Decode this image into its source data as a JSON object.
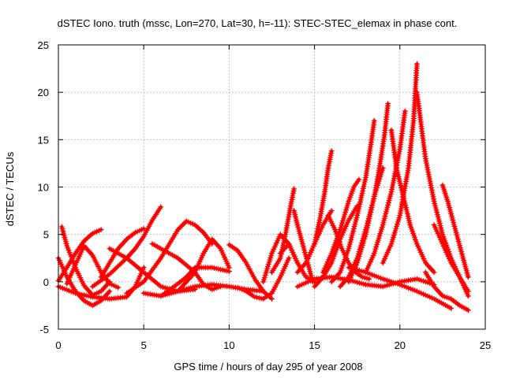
{
  "chart_data": {
    "type": "scatter",
    "title": "dSTEC Iono. truth (mssc, Lon=270, Lat=30, h=-11): STEC-STEC_elemax in phase cont.",
    "xlabel": "GPS time / hours of day 295 of year 2008",
    "ylabel": "dSTEC  / TECUs",
    "xlim": [
      0,
      25
    ],
    "ylim": [
      -5,
      25
    ],
    "xticks": [
      0,
      5,
      10,
      15,
      20,
      25
    ],
    "yticks": [
      -5,
      0,
      5,
      10,
      15,
      20,
      25
    ],
    "grid": true,
    "marker": "+",
    "series_color": "#ff0000",
    "series": [
      {
        "x": [
          0.2,
          0.5,
          1.0,
          1.5,
          2.0,
          2.5,
          3.0
        ],
        "y": [
          5.8,
          3.8,
          1.5,
          -0.4,
          -1.4,
          -1.0,
          0.0
        ]
      },
      {
        "x": [
          0.0,
          0.5,
          1.0,
          1.5,
          2.0,
          2.5
        ],
        "y": [
          0.1,
          1.5,
          3.0,
          4.3,
          5.1,
          5.5
        ]
      },
      {
        "x": [
          0.0,
          0.5,
          1.0,
          1.5,
          2.0,
          2.5,
          3.0
        ],
        "y": [
          2.5,
          0.5,
          -1.0,
          -2.0,
          -2.5,
          -2.0,
          -1.0
        ]
      },
      {
        "x": [
          0.0,
          1.0,
          2.0,
          3.0,
          4.0,
          4.5,
          5.0
        ],
        "y": [
          -0.5,
          -1.2,
          -1.6,
          -1.8,
          -1.6,
          -0.5,
          1.5
        ]
      },
      {
        "x": [
          0.5,
          1.0,
          1.5,
          2.0,
          2.5,
          3.0,
          3.5
        ],
        "y": [
          -0.2,
          1.8,
          3.8,
          2.8,
          1.0,
          -0.2,
          -0.6
        ]
      },
      {
        "x": [
          2.0,
          3.0,
          4.0,
          4.5,
          5.0,
          5.5,
          6.0
        ],
        "y": [
          -0.5,
          0.8,
          2.5,
          3.5,
          4.8,
          6.5,
          7.9
        ]
      },
      {
        "x": [
          2.5,
          3.0,
          3.5,
          4.0,
          4.5,
          5.0
        ],
        "y": [
          0.5,
          2.0,
          3.5,
          4.5,
          5.2,
          5.6
        ]
      },
      {
        "x": [
          3.0,
          4.0,
          5.0,
          6.0,
          7.0,
          8.0
        ],
        "y": [
          3.5,
          2.5,
          1.0,
          -0.5,
          -1.0,
          -0.8
        ]
      },
      {
        "x": [
          5.5,
          6.0,
          7.0,
          8.0,
          8.5,
          9.0,
          9.5
        ],
        "y": [
          4.0,
          3.5,
          2.5,
          1.0,
          -0.3,
          -0.8,
          -0.5
        ]
      },
      {
        "x": [
          4.0,
          5.0,
          6.0,
          7.0,
          7.5,
          8.0,
          8.5,
          9.0
        ],
        "y": [
          -1.2,
          0.0,
          2.5,
          5.5,
          6.4,
          6.0,
          5.2,
          4.0
        ]
      },
      {
        "x": [
          5.0,
          6.0,
          7.0,
          8.0,
          8.5,
          9.0,
          9.5,
          10.0
        ],
        "y": [
          -1.2,
          -1.5,
          -1.0,
          1.0,
          3.0,
          4.5,
          3.5,
          1.5
        ]
      },
      {
        "x": [
          6.0,
          7.0,
          7.5,
          8.0,
          9.0,
          10.0
        ],
        "y": [
          -1.5,
          -0.2,
          0.5,
          1.5,
          1.5,
          1.1
        ]
      },
      {
        "x": [
          7.0,
          8.0,
          9.0,
          10.0,
          11.0,
          12.0
        ],
        "y": [
          -1.0,
          -0.5,
          -0.3,
          -0.5,
          -0.8,
          -1.0
        ]
      },
      {
        "x": [
          10.0,
          10.5,
          11.0,
          11.5,
          12.0,
          12.5
        ],
        "y": [
          3.9,
          3.3,
          2.0,
          0.3,
          -1.0,
          -1.8
        ]
      },
      {
        "x": [
          10.5,
          11.0,
          11.5,
          12.0,
          12.5,
          13.0,
          13.5
        ],
        "y": [
          -0.6,
          -1.0,
          -1.6,
          -1.8,
          -1.2,
          0.5,
          2.5
        ]
      },
      {
        "x": [
          12.0,
          12.5,
          13.0,
          13.5,
          14.0
        ],
        "y": [
          0.0,
          3.0,
          5.0,
          4.0,
          2.0
        ]
      },
      {
        "x": [
          12.5,
          13.0,
          13.3,
          13.6,
          13.8
        ],
        "y": [
          1.0,
          2.5,
          5.0,
          8.0,
          9.8
        ]
      },
      {
        "x": [
          13.0,
          13.5,
          14.0,
          14.5,
          15.0
        ],
        "y": [
          3.0,
          4.0,
          2.0,
          0.5,
          0.0
        ]
      },
      {
        "x": [
          13.8,
          14.0,
          14.3,
          14.6,
          14.9
        ],
        "y": [
          7.5,
          6.0,
          4.0,
          2.0,
          0.0
        ]
      },
      {
        "x": [
          14.0,
          14.5,
          15.0,
          15.5,
          16.0
        ],
        "y": [
          1.0,
          2.0,
          4.0,
          6.0,
          7.5
        ]
      },
      {
        "x": [
          14.5,
          15.0,
          15.3,
          15.6,
          15.8,
          16.0
        ],
        "y": [
          2.0,
          4.0,
          6.5,
          9.5,
          12.0,
          13.8
        ]
      },
      {
        "x": [
          15.0,
          15.5,
          16.0,
          16.5,
          17.0,
          17.5
        ],
        "y": [
          -0.5,
          0.5,
          2.0,
          4.5,
          6.5,
          8.0
        ]
      },
      {
        "x": [
          15.5,
          16.0,
          16.5,
          17.0,
          17.3,
          17.6
        ],
        "y": [
          1.0,
          3.0,
          5.5,
          8.5,
          10.0,
          10.8
        ]
      },
      {
        "x": [
          15.8,
          16.2,
          16.6,
          17.0,
          17.4,
          17.8,
          18.2
        ],
        "y": [
          7.0,
          5.5,
          3.5,
          2.0,
          1.0,
          0.5,
          0.3
        ]
      },
      {
        "x": [
          16.0,
          16.5,
          17.0,
          17.5,
          18.0,
          18.3,
          18.5
        ],
        "y": [
          0.0,
          1.0,
          3.5,
          7.0,
          11.0,
          14.5,
          17.0
        ]
      },
      {
        "x": [
          16.5,
          17.0,
          17.5,
          18.0,
          18.5,
          19.0
        ],
        "y": [
          -0.5,
          0.5,
          2.5,
          5.5,
          9.0,
          12.0
        ]
      },
      {
        "x": [
          17.0,
          17.5,
          18.0,
          18.5,
          18.8,
          19.1,
          19.3
        ],
        "y": [
          0.0,
          2.0,
          5.0,
          9.0,
          12.0,
          15.5,
          18.8
        ]
      },
      {
        "x": [
          18.0,
          18.5,
          19.0,
          19.5,
          20.0,
          20.3
        ],
        "y": [
          1.0,
          3.0,
          6.0,
          9.5,
          14.0,
          18.0
        ]
      },
      {
        "x": [
          19.5,
          19.8,
          20.2,
          20.6,
          21.0,
          21.5,
          22.0
        ],
        "y": [
          16.0,
          12.0,
          9.0,
          6.0,
          4.0,
          2.0,
          1.0
        ]
      },
      {
        "x": [
          19.0,
          19.5,
          20.0,
          20.5,
          20.8,
          21.0
        ],
        "y": [
          2.0,
          4.0,
          7.0,
          12.0,
          17.0,
          23.0
        ]
      },
      {
        "x": [
          21.0,
          21.5,
          22.0,
          22.5,
          23.0,
          23.5,
          24.0
        ],
        "y": [
          20.0,
          13.0,
          8.5,
          5.0,
          2.5,
          0.5,
          -1.0
        ]
      },
      {
        "x": [
          21.5,
          22.0,
          22.5,
          23.0,
          23.5,
          24.0
        ],
        "y": [
          1.0,
          -0.5,
          -1.5,
          -1.8,
          -2.5,
          -3.0
        ]
      },
      {
        "x": [
          22.5,
          22.8,
          23.1,
          23.4,
          23.7,
          24.0
        ],
        "y": [
          10.2,
          8.5,
          6.5,
          4.5,
          2.5,
          0.5
        ]
      },
      {
        "x": [
          22.0,
          22.5,
          23.0,
          23.5,
          24.0
        ],
        "y": [
          6.0,
          4.0,
          2.0,
          0.5,
          -1.5
        ]
      },
      {
        "x": [
          14.0,
          15.0,
          16.0,
          17.0,
          18.0,
          19.0,
          20.0,
          21.0,
          22.0
        ],
        "y": [
          -0.5,
          0.3,
          0.5,
          0.2,
          -0.3,
          -0.5,
          0.0,
          0.3,
          -0.3
        ]
      },
      {
        "x": [
          17.0,
          18.0,
          19.0,
          20.0,
          21.0,
          22.0,
          23.0
        ],
        "y": [
          1.5,
          1.0,
          0.3,
          -0.3,
          -1.0,
          -1.8,
          -2.8
        ]
      }
    ]
  }
}
